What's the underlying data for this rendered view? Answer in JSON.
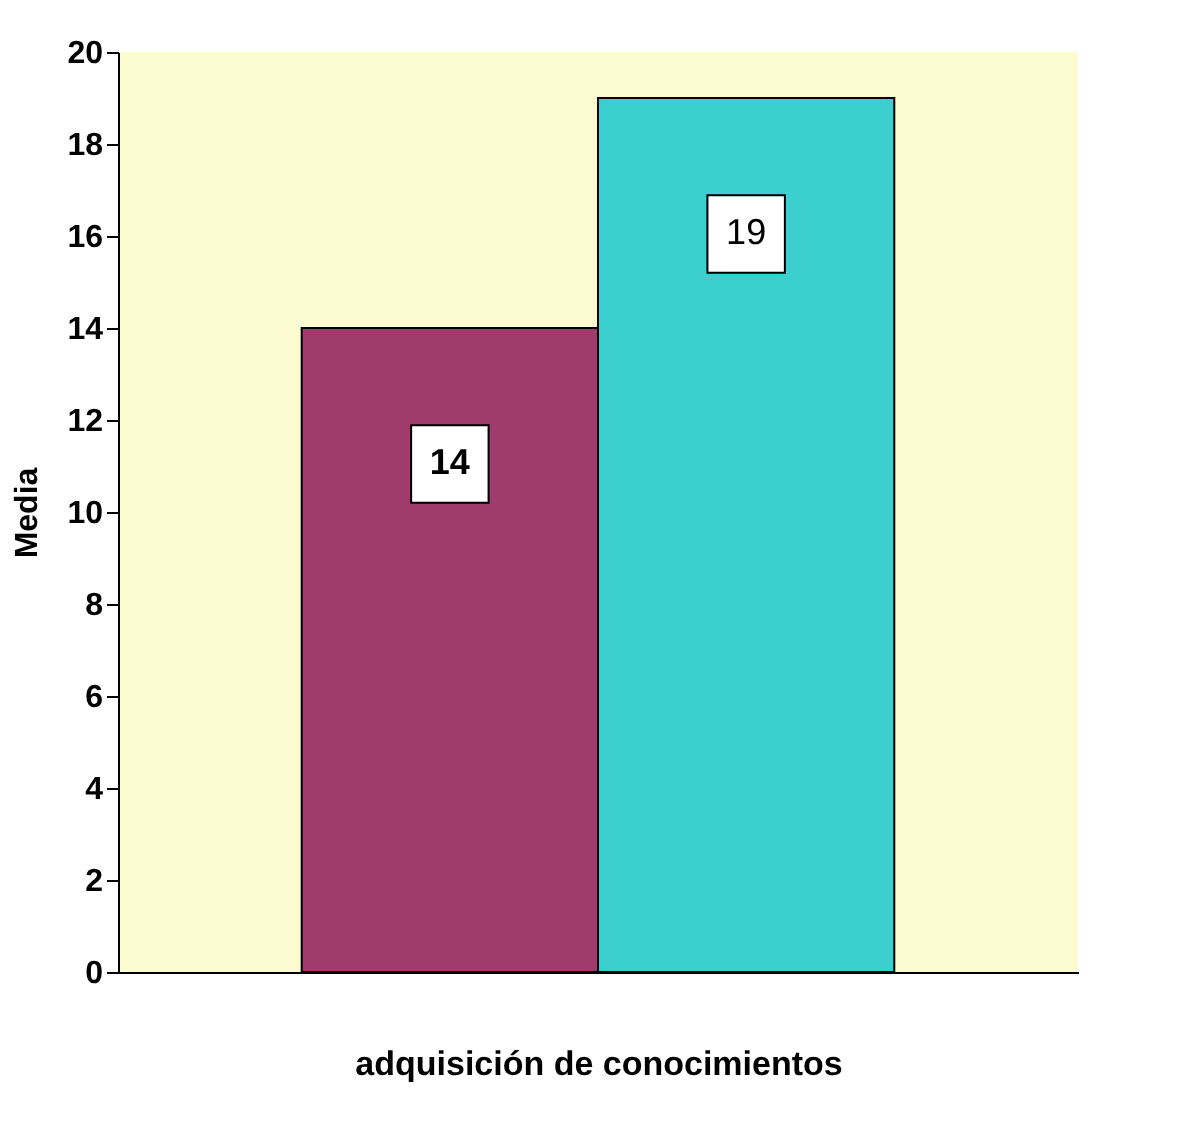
{
  "chart_data": {
    "type": "bar",
    "xlabel": "adquisición de conocimientos",
    "ylabel": "Media",
    "categories": [
      null,
      null
    ],
    "values": [
      14,
      19
    ],
    "colors": [
      "#a03c6c",
      "#3ccfcf"
    ],
    "ylim": [
      0,
      20
    ],
    "yticks": [
      0,
      2,
      4,
      6,
      8,
      10,
      12,
      14,
      16,
      18,
      20
    ],
    "data_labels": true,
    "grid": false
  }
}
